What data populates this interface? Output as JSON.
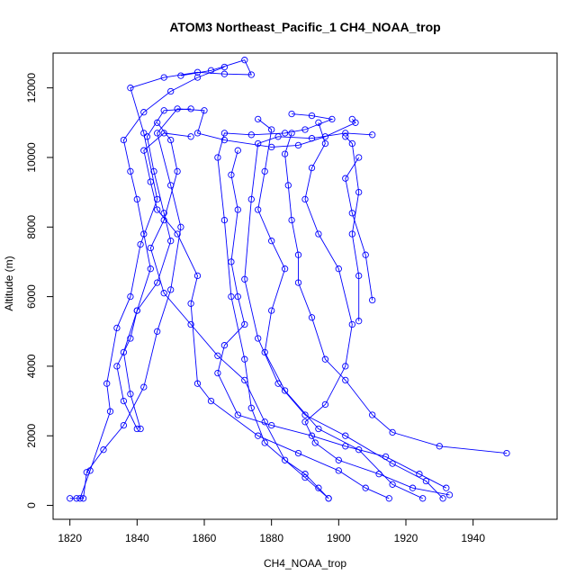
{
  "chart_data": {
    "type": "line",
    "title": "ATOM3 Northeast_Pacific_1 CH4_NOAA_trop",
    "xlabel": "CH4_NOAA_trop",
    "ylabel": "Altitude (m)",
    "xlim": [
      1815,
      1965
    ],
    "ylim": [
      -400,
      13000
    ],
    "xticks": [
      1820,
      1840,
      1860,
      1880,
      1900,
      1920,
      1940
    ],
    "yticks": [
      0,
      2000,
      4000,
      6000,
      8000,
      10000,
      12000
    ],
    "grid": false,
    "legend": "none",
    "marker": "open-circle",
    "color": "#0000ff",
    "series": [
      {
        "profile": 1,
        "points": [
          [
            1820,
            200
          ],
          [
            1822,
            200
          ],
          [
            1824,
            200
          ],
          [
            1825,
            950
          ],
          [
            1830,
            1600
          ],
          [
            1836,
            2300
          ],
          [
            1842,
            3400
          ],
          [
            1846,
            5000
          ],
          [
            1850,
            6200
          ],
          [
            1853,
            8000
          ],
          [
            1850,
            9200
          ],
          [
            1846,
            10700
          ],
          [
            1852,
            11400
          ],
          [
            1860,
            11350
          ],
          [
            1858,
            10700
          ],
          [
            1866,
            10500
          ],
          [
            1880,
            10300
          ],
          [
            1888,
            10350
          ],
          [
            1896,
            10600
          ],
          [
            1905,
            11000
          ],
          [
            1904,
            11100
          ]
        ]
      },
      {
        "profile": 2,
        "points": [
          [
            1823,
            200
          ],
          [
            1826,
            1000
          ],
          [
            1832,
            2700
          ],
          [
            1831,
            3500
          ],
          [
            1834,
            5100
          ],
          [
            1838,
            6000
          ],
          [
            1841,
            7500
          ],
          [
            1846,
            8800
          ],
          [
            1842,
            10700
          ],
          [
            1838,
            12000
          ],
          [
            1848,
            12300
          ],
          [
            1858,
            12450
          ],
          [
            1866,
            12400
          ],
          [
            1874,
            12380
          ],
          [
            1872,
            12800
          ],
          [
            1862,
            12500
          ],
          [
            1853,
            12350
          ]
        ]
      },
      {
        "profile": 3,
        "points": [
          [
            1897,
            200
          ],
          [
            1890,
            800
          ],
          [
            1878,
            1800
          ],
          [
            1874,
            2800
          ],
          [
            1872,
            4200
          ],
          [
            1868,
            6000
          ],
          [
            1866,
            8200
          ],
          [
            1864,
            10000
          ],
          [
            1866,
            10700
          ],
          [
            1874,
            10650
          ],
          [
            1884,
            10700
          ],
          [
            1890,
            10800
          ],
          [
            1898,
            11100
          ],
          [
            1892,
            11200
          ],
          [
            1886,
            11250
          ]
        ]
      },
      {
        "profile": 4,
        "points": [
          [
            1931,
            200
          ],
          [
            1926,
            700
          ],
          [
            1916,
            1200
          ],
          [
            1902,
            2000
          ],
          [
            1890,
            2600
          ],
          [
            1882,
            3500
          ],
          [
            1876,
            4800
          ],
          [
            1872,
            6500
          ],
          [
            1874,
            8800
          ],
          [
            1876,
            10400
          ],
          [
            1882,
            10600
          ],
          [
            1892,
            10550
          ],
          [
            1902,
            10700
          ],
          [
            1910,
            10650
          ]
        ]
      },
      {
        "profile": 5,
        "points": [
          [
            1915,
            200
          ],
          [
            1908,
            500
          ],
          [
            1900,
            1000
          ],
          [
            1888,
            1500
          ],
          [
            1876,
            2000
          ],
          [
            1862,
            3000
          ],
          [
            1858,
            3500
          ],
          [
            1856,
            5800
          ],
          [
            1858,
            6600
          ],
          [
            1852,
            7800
          ],
          [
            1846,
            8500
          ],
          [
            1844,
            9300
          ],
          [
            1842,
            10200
          ],
          [
            1848,
            10700
          ],
          [
            1856,
            10600
          ]
        ]
      },
      {
        "profile": 6,
        "points": [
          [
            1950,
            1500
          ],
          [
            1930,
            1700
          ],
          [
            1916,
            2100
          ],
          [
            1910,
            2600
          ],
          [
            1902,
            3600
          ],
          [
            1896,
            4200
          ],
          [
            1892,
            5400
          ],
          [
            1888,
            6400
          ],
          [
            1888,
            7200
          ],
          [
            1886,
            8200
          ],
          [
            1885,
            9200
          ],
          [
            1884,
            10100
          ],
          [
            1886,
            10700
          ]
        ]
      },
      {
        "profile": 7,
        "points": [
          [
            1933,
            300
          ],
          [
            1922,
            500
          ],
          [
            1912,
            900
          ],
          [
            1900,
            1300
          ],
          [
            1893,
            1800
          ],
          [
            1890,
            2400
          ],
          [
            1896,
            2900
          ],
          [
            1902,
            4000
          ],
          [
            1904,
            5200
          ],
          [
            1900,
            6800
          ],
          [
            1894,
            7800
          ],
          [
            1890,
            8800
          ],
          [
            1892,
            9700
          ],
          [
            1896,
            10400
          ],
          [
            1894,
            11000
          ]
        ]
      },
      {
        "profile": 8,
        "points": [
          [
            1925,
            200
          ],
          [
            1916,
            600
          ],
          [
            1906,
            1600
          ],
          [
            1894,
            2200
          ],
          [
            1884,
            3300
          ],
          [
            1878,
            4400
          ],
          [
            1880,
            5600
          ],
          [
            1884,
            6800
          ],
          [
            1880,
            7600
          ],
          [
            1876,
            8500
          ],
          [
            1878,
            9600
          ],
          [
            1880,
            10800
          ],
          [
            1876,
            11100
          ]
        ]
      },
      {
        "profile": 9,
        "points": [
          [
            1932,
            500
          ],
          [
            1924,
            900
          ],
          [
            1914,
            1400
          ],
          [
            1902,
            1700
          ],
          [
            1892,
            2000
          ],
          [
            1880,
            2300
          ],
          [
            1870,
            2600
          ],
          [
            1864,
            3800
          ],
          [
            1866,
            4600
          ],
          [
            1872,
            5200
          ],
          [
            1870,
            6000
          ],
          [
            1868,
            7000
          ],
          [
            1870,
            8500
          ],
          [
            1868,
            9500
          ],
          [
            1870,
            10200
          ]
        ]
      },
      {
        "profile": 10,
        "points": [
          [
            1897,
            200
          ],
          [
            1894,
            500
          ],
          [
            1890,
            900
          ],
          [
            1884,
            1300
          ],
          [
            1878,
            2400
          ],
          [
            1872,
            3600
          ],
          [
            1864,
            4300
          ],
          [
            1856,
            5200
          ],
          [
            1848,
            6100
          ],
          [
            1844,
            7400
          ],
          [
            1848,
            8200
          ],
          [
            1852,
            9600
          ],
          [
            1850,
            10500
          ],
          [
            1846,
            11000
          ]
        ]
      },
      {
        "profile": 11,
        "points": [
          [
            1840,
            2200
          ],
          [
            1836,
            3000
          ],
          [
            1834,
            4000
          ],
          [
            1838,
            4800
          ],
          [
            1840,
            5600
          ],
          [
            1844,
            6800
          ],
          [
            1842,
            7800
          ],
          [
            1840,
            8800
          ],
          [
            1838,
            9600
          ],
          [
            1836,
            10500
          ],
          [
            1842,
            11300
          ],
          [
            1850,
            11900
          ],
          [
            1858,
            12300
          ],
          [
            1866,
            12600
          ]
        ]
      },
      {
        "profile": 12,
        "points": [
          [
            1841,
            2200
          ],
          [
            1838,
            3200
          ],
          [
            1836,
            4400
          ],
          [
            1840,
            5600
          ],
          [
            1846,
            6400
          ],
          [
            1850,
            7600
          ],
          [
            1848,
            8400
          ],
          [
            1845,
            9600
          ],
          [
            1843,
            10600
          ],
          [
            1848,
            11350
          ],
          [
            1856,
            11400
          ]
        ]
      },
      {
        "profile": 13,
        "points": [
          [
            1906,
            5300
          ],
          [
            1906,
            6600
          ],
          [
            1904,
            7800
          ],
          [
            1906,
            9000
          ],
          [
            1904,
            10400
          ],
          [
            1902,
            10600
          ]
        ]
      },
      {
        "profile": 14,
        "points": [
          [
            1910,
            5900
          ],
          [
            1908,
            7200
          ],
          [
            1904,
            8400
          ],
          [
            1902,
            9400
          ],
          [
            1906,
            10000
          ]
        ]
      }
    ]
  }
}
